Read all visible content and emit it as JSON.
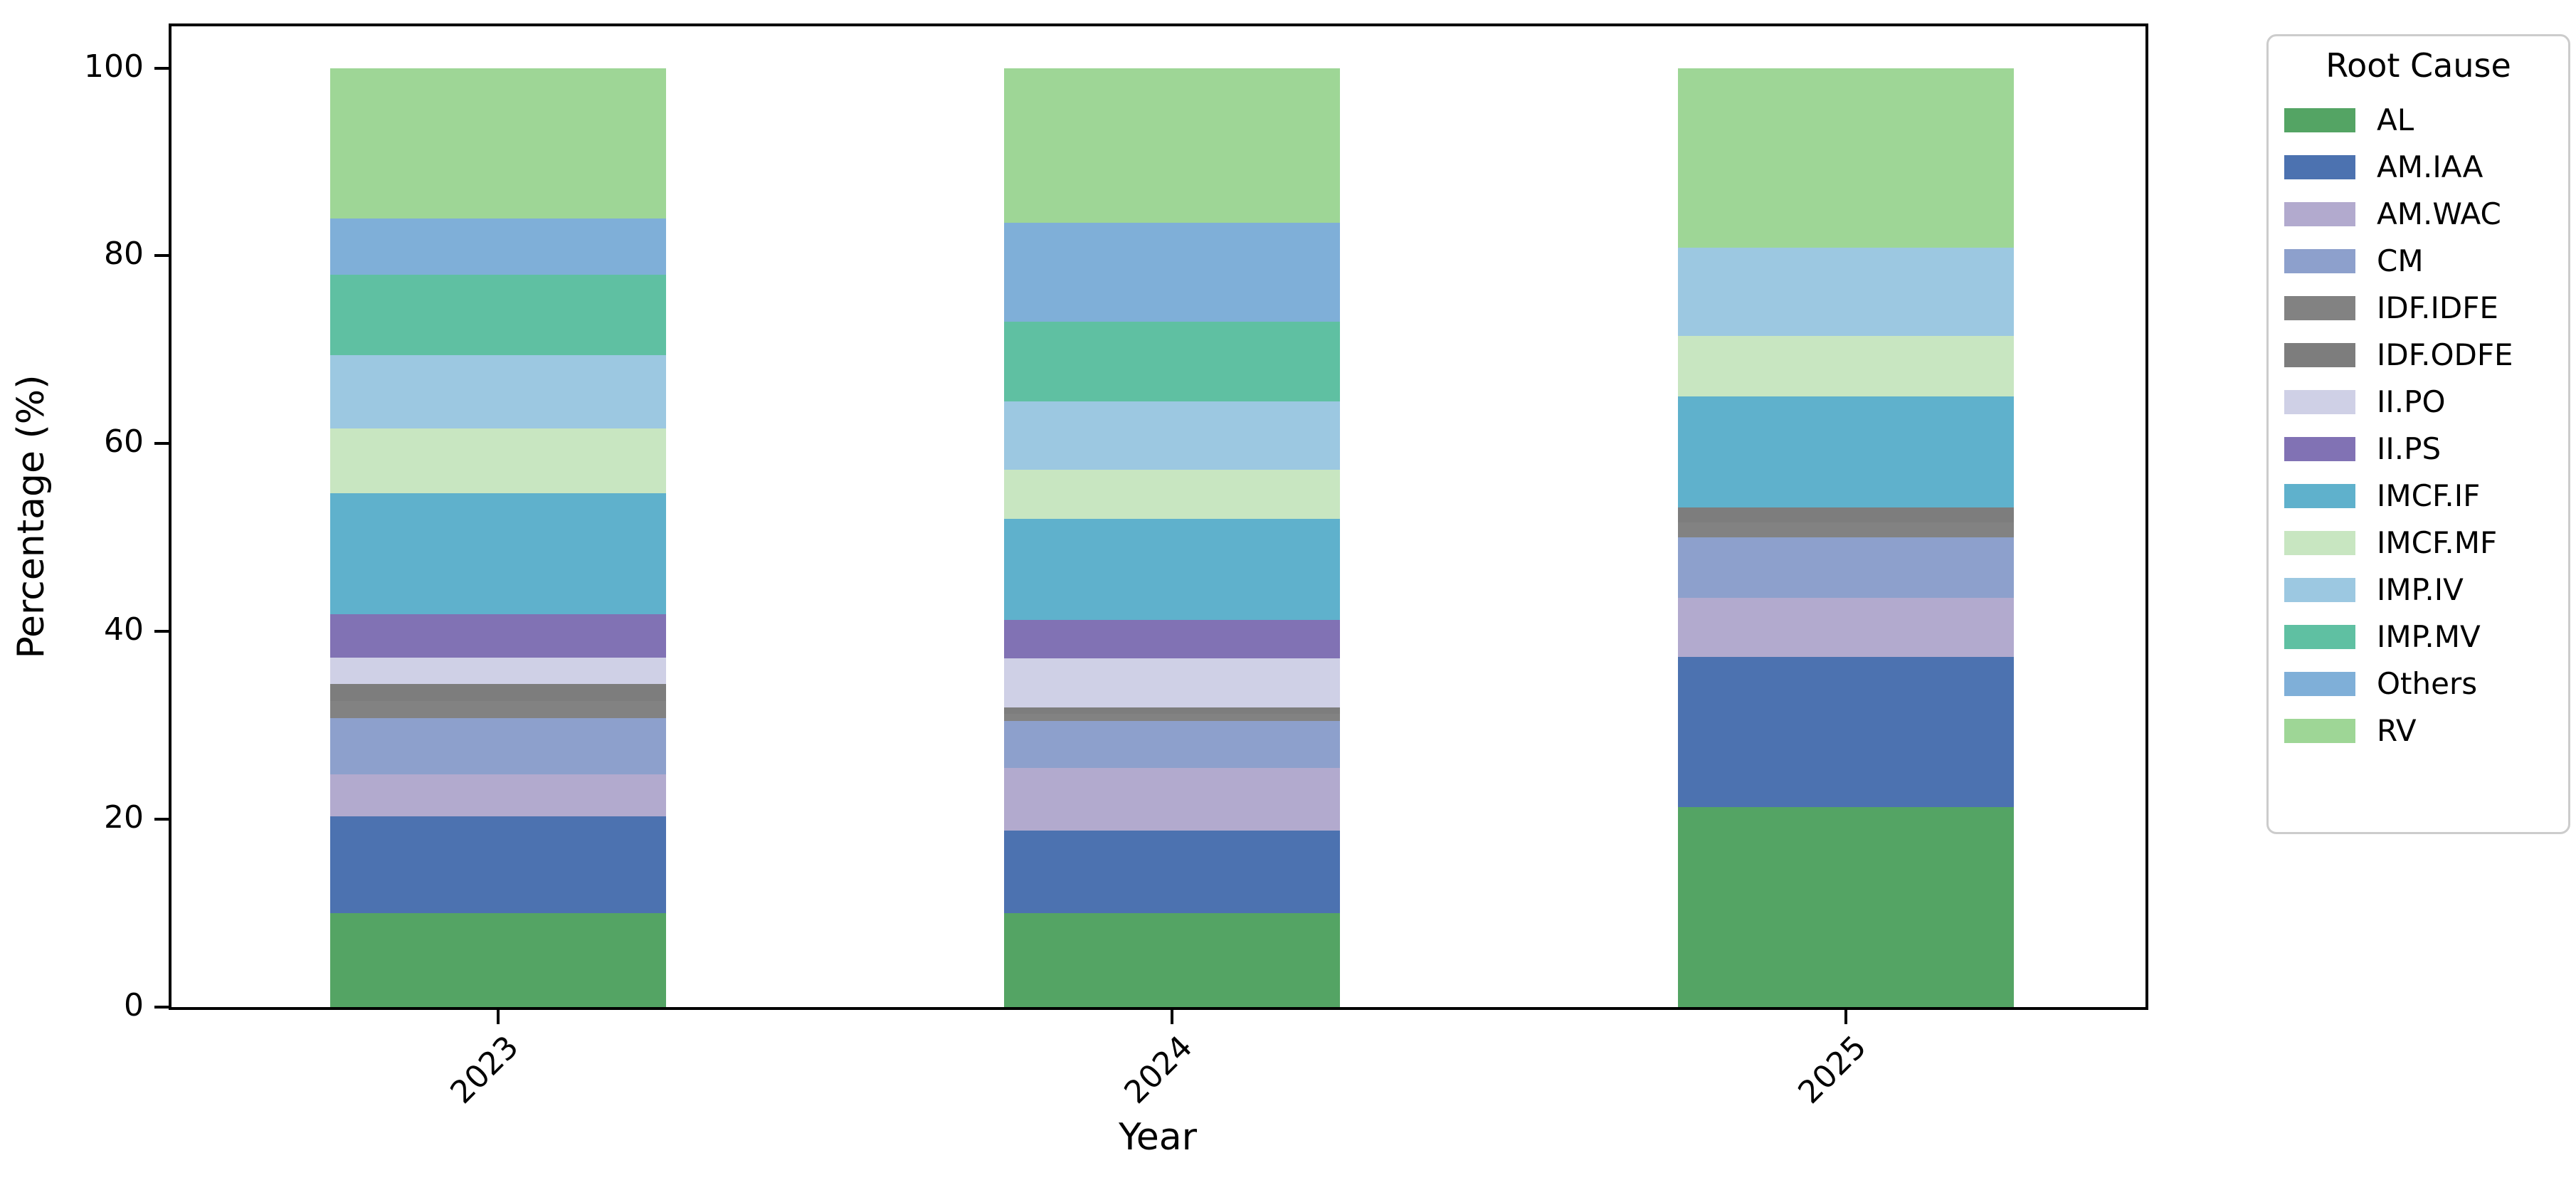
{
  "chart_data": {
    "type": "bar",
    "stacked": true,
    "normalized": "percent",
    "title": "",
    "xlabel": "Year",
    "ylabel": "Percentage (%)",
    "categories": [
      "2023",
      "2024",
      "2025"
    ],
    "yticks": [
      0,
      20,
      40,
      60,
      80,
      100
    ],
    "ylim": [
      0,
      104.7
    ],
    "grid": false,
    "legend_title": "Root Cause",
    "legend_position": "outside upper right",
    "series": [
      {
        "name": "AL",
        "color": "#54a464",
        "values": [
          10.0,
          10.0,
          21.3
        ]
      },
      {
        "name": "AM.IAA",
        "color": "#4c72b0",
        "values": [
          10.3,
          8.8,
          16.0
        ]
      },
      {
        "name": "AM.WAC",
        "color": "#b2aace",
        "values": [
          4.5,
          6.7,
          6.3
        ]
      },
      {
        "name": "CM",
        "color": "#8da0cc",
        "values": [
          6.0,
          5.0,
          6.4
        ]
      },
      {
        "name": "IDF.IDFE",
        "color": "#828282",
        "values": [
          1.8,
          0.7,
          1.6
        ]
      },
      {
        "name": "IDF.ODFE",
        "color": "#7d7d7d",
        "values": [
          1.8,
          0.7,
          1.6
        ]
      },
      {
        "name": "II.PO",
        "color": "#cfd0e6",
        "values": [
          2.8,
          5.2,
          0.0
        ]
      },
      {
        "name": "II.PS",
        "color": "#8172b4",
        "values": [
          4.6,
          4.1,
          0.0
        ]
      },
      {
        "name": "IMCF.IF",
        "color": "#5fb1cc",
        "values": [
          12.9,
          10.8,
          11.8
        ]
      },
      {
        "name": "IMCF.MF",
        "color": "#c8e6c1",
        "values": [
          6.9,
          5.2,
          6.5
        ]
      },
      {
        "name": "IMP.IV",
        "color": "#9cc8e1",
        "values": [
          7.8,
          7.3,
          9.4
        ]
      },
      {
        "name": "IMP.MV",
        "color": "#5fc0a2",
        "values": [
          8.6,
          8.5,
          0.0
        ]
      },
      {
        "name": "Others",
        "color": "#7fafd8",
        "values": [
          6.0,
          10.5,
          0.0
        ]
      },
      {
        "name": "RV",
        "color": "#9ed696",
        "values": [
          16.0,
          16.5,
          19.1
        ]
      }
    ]
  }
}
